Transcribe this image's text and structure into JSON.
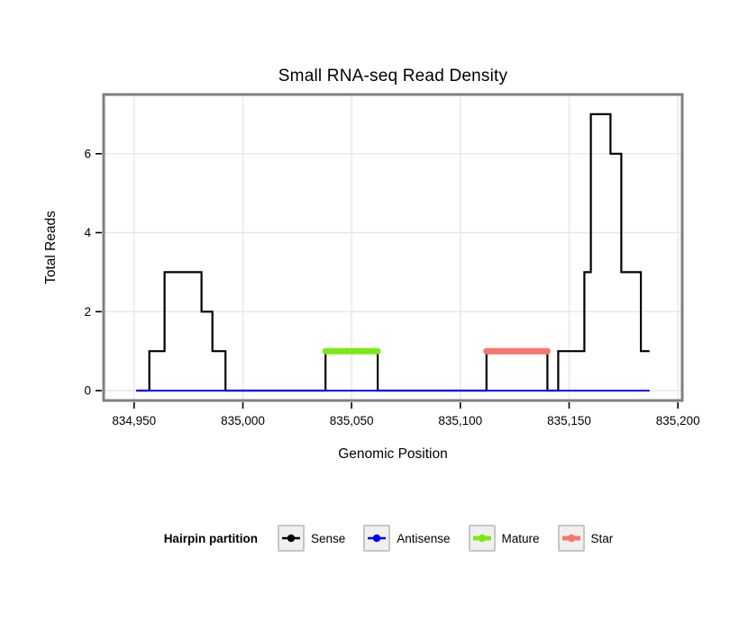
{
  "title": "Small RNA-seq Read Density",
  "axis": {
    "x_label": "Genomic Position",
    "y_label": "Total Reads"
  },
  "chart_data": {
    "type": "line",
    "subtype": "step-read-density",
    "title": "Small RNA-seq Read Density",
    "xlabel": "Genomic Position",
    "ylabel": "Total Reads",
    "xlim": [
      834936,
      835202
    ],
    "ylim": [
      -0.25,
      7.5
    ],
    "grid": true,
    "legend_position": "bottom",
    "x_ticks": [
      {
        "value": 834950,
        "label": "834,950"
      },
      {
        "value": 835000,
        "label": "835,000"
      },
      {
        "value": 835050,
        "label": "835,050"
      },
      {
        "value": 835100,
        "label": "835,100"
      },
      {
        "value": 835150,
        "label": "835,150"
      },
      {
        "value": 835200,
        "label": "835,200"
      }
    ],
    "y_ticks": [
      {
        "value": 0,
        "label": "0"
      },
      {
        "value": 2,
        "label": "2"
      },
      {
        "value": 4,
        "label": "4"
      },
      {
        "value": 6,
        "label": "6"
      }
    ],
    "series": [
      {
        "name": "Sense",
        "color": "#000000",
        "line_width": 2.2,
        "line_cap": "butt",
        "points": [
          [
            834951,
            0
          ],
          [
            834957,
            0
          ],
          [
            834957,
            1
          ],
          [
            834964,
            1
          ],
          [
            834964,
            3
          ],
          [
            834981,
            3
          ],
          [
            834981,
            2
          ],
          [
            834986,
            2
          ],
          [
            834986,
            1
          ],
          [
            834992,
            1
          ],
          [
            834992,
            0
          ],
          [
            835038,
            0
          ],
          [
            835038,
            1
          ],
          [
            835062,
            1
          ],
          [
            835062,
            0
          ],
          [
            835112,
            0
          ],
          [
            835112,
            1
          ],
          [
            835140,
            1
          ],
          [
            835140,
            0
          ],
          [
            835145,
            0
          ],
          [
            835145,
            1
          ],
          [
            835157,
            1
          ],
          [
            835157,
            3
          ],
          [
            835160,
            3
          ],
          [
            835160,
            7
          ],
          [
            835169,
            7
          ],
          [
            835169,
            6
          ],
          [
            835174,
            6
          ],
          [
            835174,
            3
          ],
          [
            835183,
            3
          ],
          [
            835183,
            1
          ],
          [
            835187,
            1
          ]
        ]
      },
      {
        "name": "Antisense",
        "color": "#0000FF",
        "line_width": 2,
        "line_cap": "butt",
        "points": [
          [
            834951,
            0
          ],
          [
            835187,
            0
          ]
        ]
      },
      {
        "name": "Mature",
        "color": "#7CE818",
        "line_width": 7,
        "line_cap": "round",
        "points": [
          [
            835038,
            1
          ],
          [
            835062,
            1
          ]
        ]
      },
      {
        "name": "Star",
        "color": "#F8766D",
        "line_width": 7,
        "line_cap": "round",
        "points": [
          [
            835112,
            1
          ],
          [
            835140,
            1
          ]
        ]
      }
    ]
  },
  "legend": {
    "title": "Hairpin partition",
    "items": [
      {
        "label": "Sense",
        "color": "#000000",
        "key_line_width": 2.5
      },
      {
        "label": "Antisense",
        "color": "#0000FF",
        "key_line_width": 2.5
      },
      {
        "label": "Mature",
        "color": "#7CE818",
        "key_line_width": 5
      },
      {
        "label": "Star",
        "color": "#F8766D",
        "key_line_width": 5
      }
    ]
  },
  "colors": {
    "background": "#FFFFFF",
    "panel_bg": "#FFFFFF",
    "grid": "#E6E6EF",
    "panel_border": "#7F7F7F",
    "tick": "#000000",
    "text": "#000000",
    "legend_key_bg": "#F0F0F0",
    "legend_key_border": "#C6C6C6"
  }
}
